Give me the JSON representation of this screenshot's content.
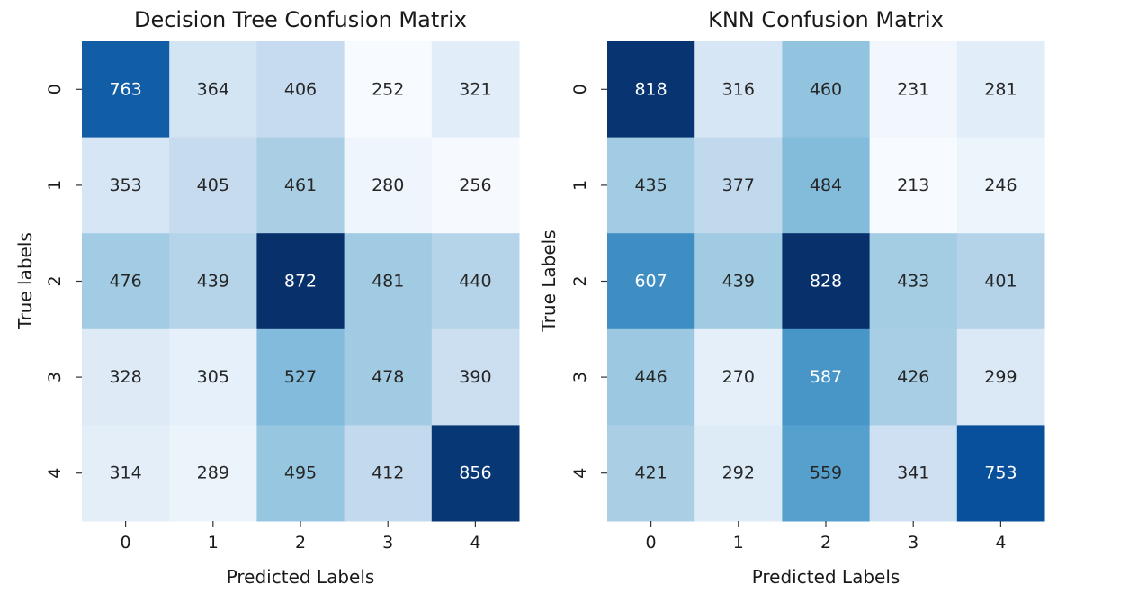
{
  "chart_data": [
    {
      "type": "heatmap",
      "title": "Decision Tree Confusion Matrix",
      "xlabel": "Predicted Labels",
      "ylabel": "True labels",
      "x_categories": [
        "0",
        "1",
        "2",
        "3",
        "4"
      ],
      "y_categories": [
        "0",
        "1",
        "2",
        "3",
        "4"
      ],
      "values": [
        [
          763,
          364,
          406,
          252,
          321
        ],
        [
          353,
          405,
          461,
          280,
          256
        ],
        [
          476,
          439,
          872,
          481,
          440
        ],
        [
          328,
          305,
          527,
          478,
          390
        ],
        [
          314,
          289,
          495,
          412,
          856
        ]
      ],
      "colormap": "Blues",
      "colorbar": false,
      "annotated": true
    },
    {
      "type": "heatmap",
      "title": "KNN Confusion Matrix",
      "xlabel": "Predicted Labels",
      "ylabel": "True Labels",
      "x_categories": [
        "0",
        "1",
        "2",
        "3",
        "4"
      ],
      "y_categories": [
        "0",
        "1",
        "2",
        "3",
        "4"
      ],
      "values": [
        [
          818,
          316,
          460,
          231,
          281
        ],
        [
          435,
          377,
          484,
          213,
          246
        ],
        [
          607,
          439,
          828,
          433,
          401
        ],
        [
          446,
          270,
          587,
          426,
          299
        ],
        [
          421,
          292,
          559,
          341,
          753
        ]
      ],
      "colormap": "Blues",
      "colorbar": false,
      "annotated": true
    }
  ]
}
